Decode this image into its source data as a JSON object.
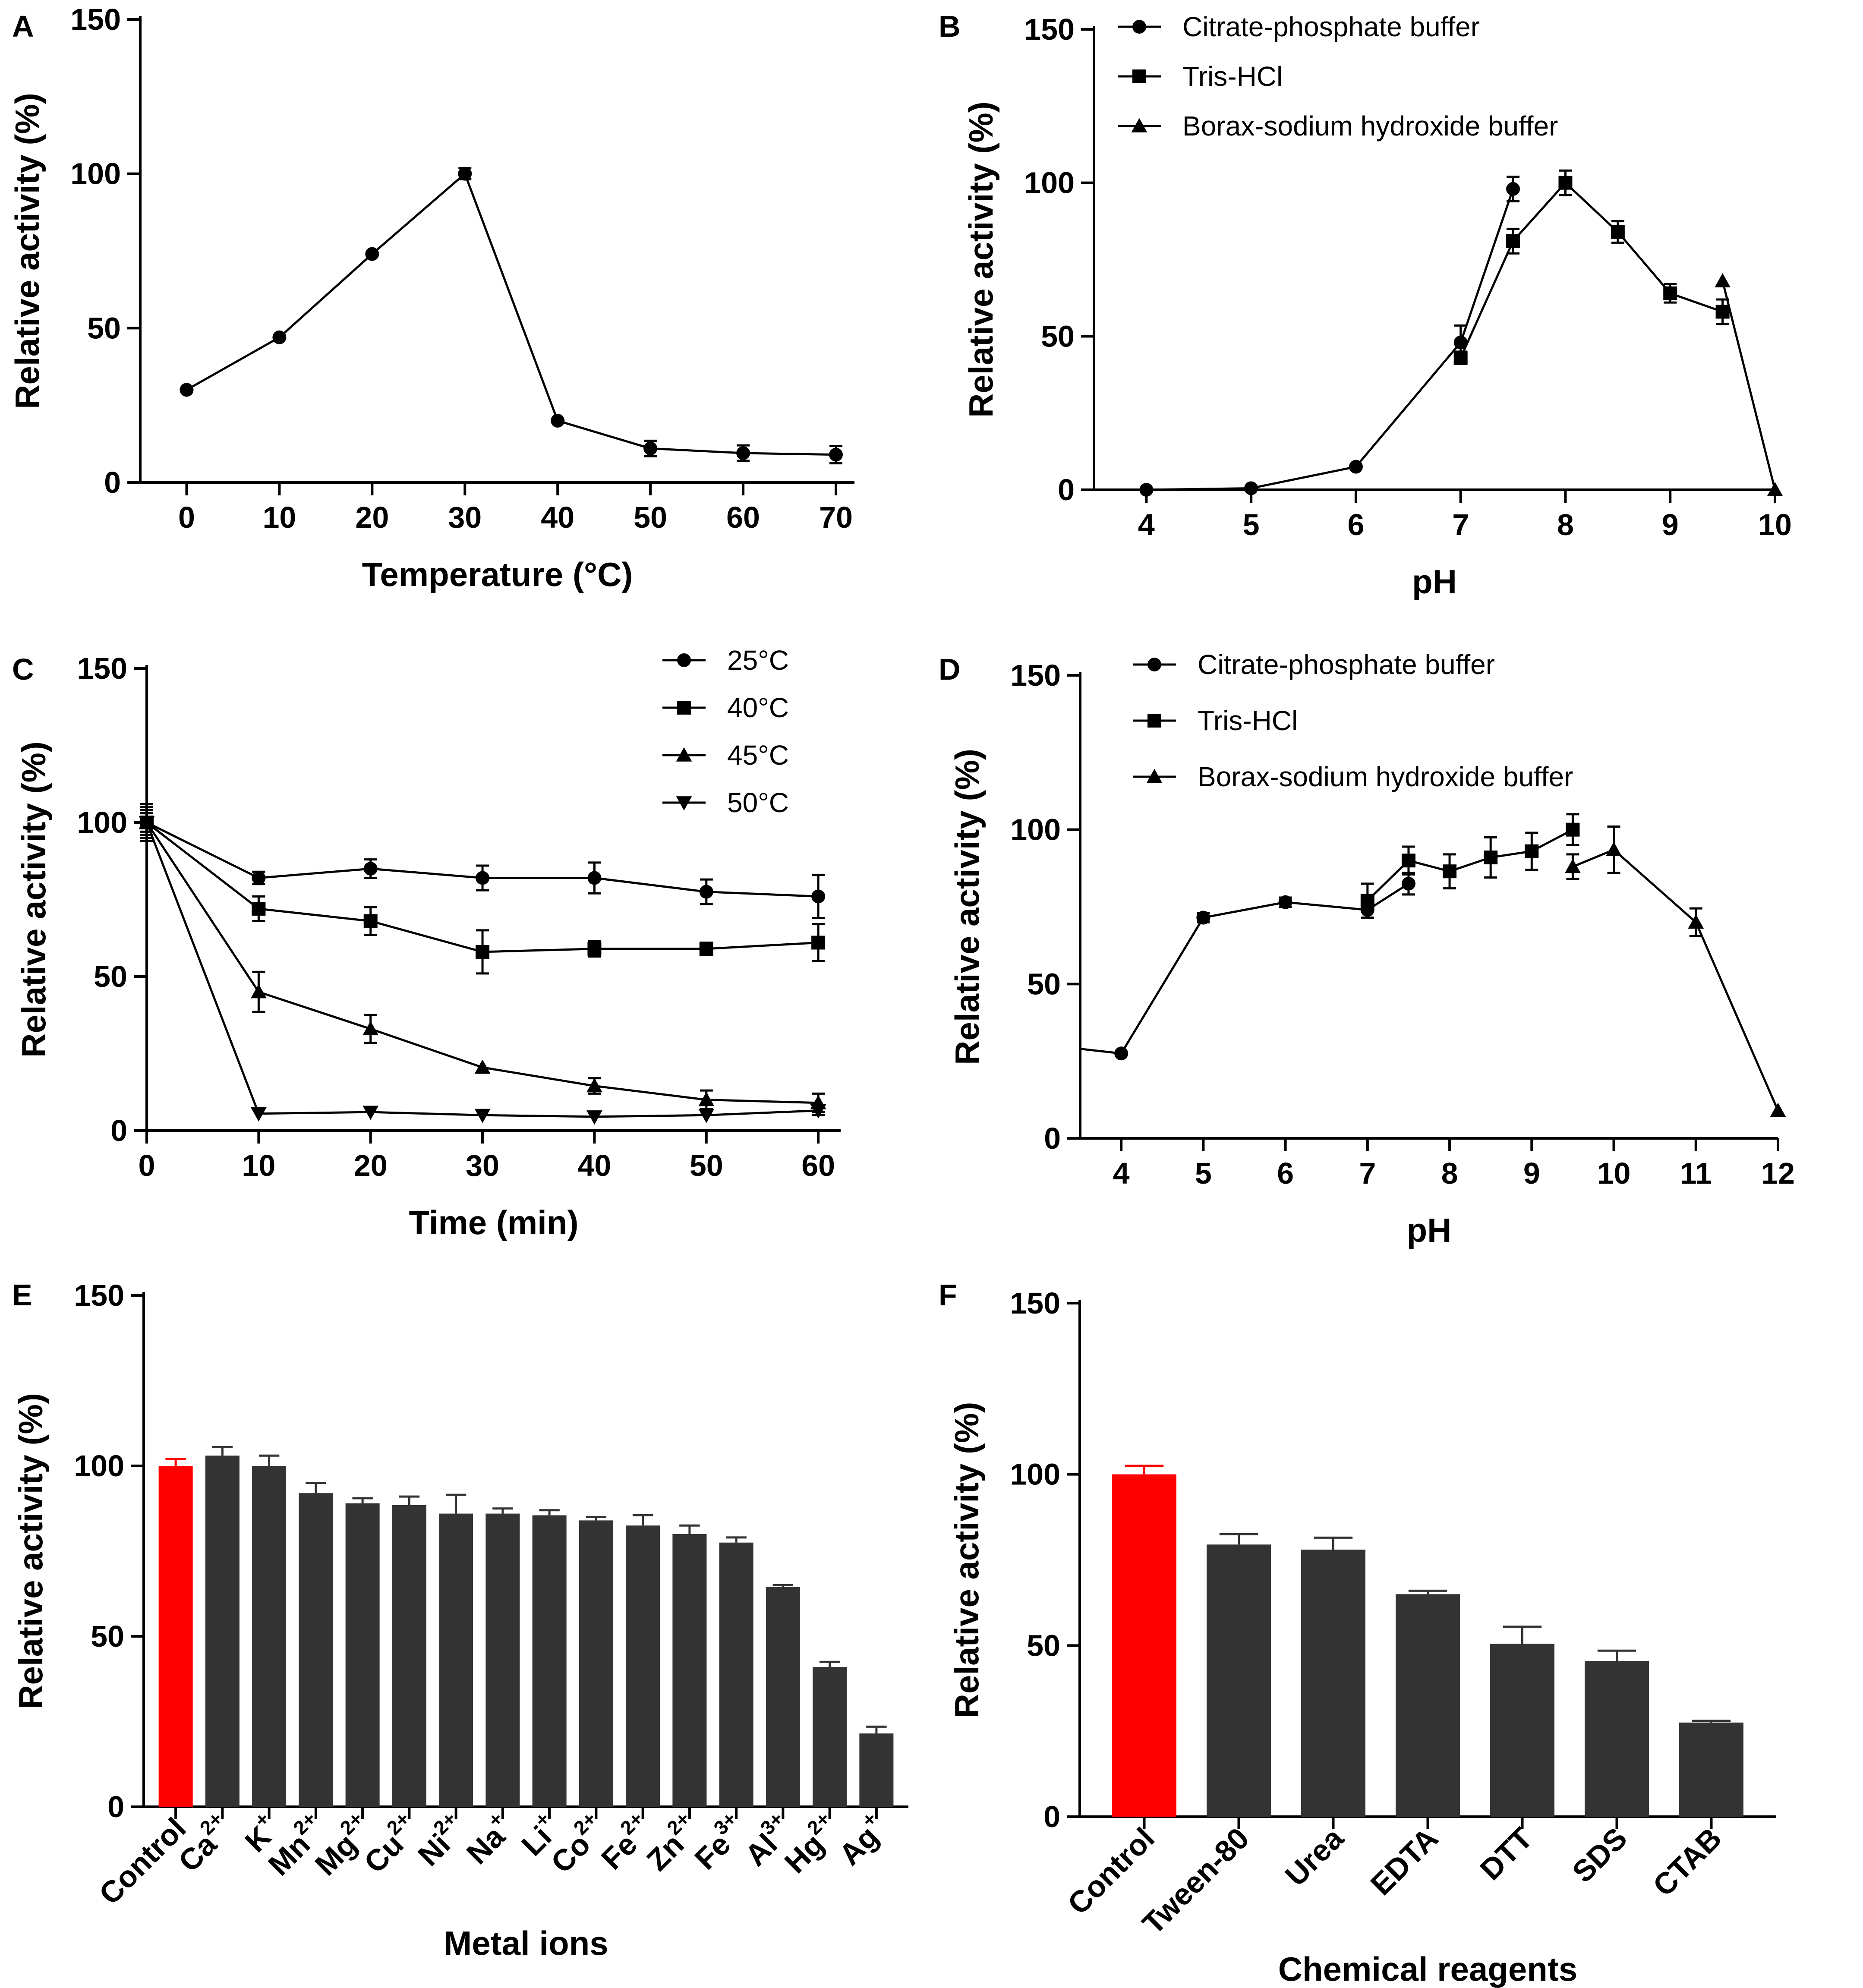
{
  "panels": [
    {
      "letter": "A",
      "type": "line",
      "xlabel": "Temperature (°C)",
      "ylabel": "Relative activity (%)",
      "xlim": [
        -5,
        72
      ],
      "ylim": [
        0,
        150
      ],
      "xticks": [
        0,
        10,
        20,
        30,
        40,
        50,
        60,
        70
      ],
      "yticks": [
        0,
        50,
        100,
        150
      ],
      "series": [
        {
          "name": "",
          "marker": "circle",
          "x": [
            0,
            10,
            20,
            30,
            40,
            50,
            60,
            70
          ],
          "y": [
            30,
            47,
            74,
            100,
            20,
            11,
            9.5,
            9
          ],
          "err": [
            0,
            0,
            0,
            1.8,
            0,
            2.5,
            2.5,
            2.8
          ]
        }
      ]
    },
    {
      "letter": "B",
      "type": "line",
      "xlabel": "pH",
      "ylabel": "Relative activity (%)",
      "xlim": [
        3.5,
        10
      ],
      "ylim": [
        0,
        150
      ],
      "xticks": [
        4,
        5,
        6,
        7,
        8,
        9,
        10
      ],
      "yticks": [
        0,
        50,
        100,
        150
      ],
      "legend": [
        "Citrate-phosphate buffer",
        "Tris-HCl",
        "Borax-sodium hydroxide buffer"
      ],
      "series": [
        {
          "name": "Citrate-phosphate buffer",
          "marker": "circle",
          "x": [
            4,
            5,
            6,
            7,
            7.5
          ],
          "y": [
            0,
            0.5,
            7.5,
            48,
            98
          ],
          "err": [
            0,
            0,
            0,
            5.5,
            4
          ]
        },
        {
          "name": "Tris-HCl",
          "marker": "square",
          "x": [
            7,
            7.5,
            8,
            8.5,
            9,
            9.5
          ],
          "y": [
            43,
            81,
            100,
            84,
            64,
            58
          ],
          "err": [
            2,
            4,
            4,
            3.5,
            3,
            4
          ]
        },
        {
          "name": "Borax-sodium hydroxide buffer",
          "marker": "triangle",
          "x": [
            9.5,
            10
          ],
          "y": [
            68,
            0
          ],
          "err": [
            0,
            0
          ]
        }
      ]
    },
    {
      "letter": "C",
      "type": "line",
      "xlabel": "Time (min)",
      "ylabel": "Relative activity (%)",
      "xlim": [
        0,
        62
      ],
      "ylim": [
        0,
        150
      ],
      "xticks": [
        0,
        10,
        20,
        30,
        40,
        50,
        60
      ],
      "yticks": [
        0,
        50,
        100,
        150
      ],
      "legend": [
        "25°C",
        "40°C",
        "45°C",
        "50°C"
      ],
      "series": [
        {
          "name": "25°C",
          "marker": "circle",
          "x": [
            0,
            10,
            20,
            30,
            40,
            50,
            60
          ],
          "y": [
            100,
            82,
            85,
            82,
            82,
            77.5,
            76
          ],
          "err": [
            6,
            2,
            3,
            4,
            5,
            4,
            7
          ]
        },
        {
          "name": "40°C",
          "marker": "square",
          "x": [
            0,
            10,
            20,
            30,
            40,
            50,
            60
          ],
          "y": [
            100,
            72,
            68,
            58,
            59,
            59,
            61
          ],
          "err": [
            5,
            4,
            4.5,
            7,
            2.5,
            2,
            6
          ]
        },
        {
          "name": "45°C",
          "marker": "triangle",
          "x": [
            0,
            10,
            20,
            30,
            40,
            50,
            60
          ],
          "y": [
            100,
            45,
            33,
            20.5,
            14.5,
            10,
            9
          ],
          "err": [
            4,
            6.5,
            4.5,
            0,
            2.5,
            3,
            3
          ]
        },
        {
          "name": "50°C",
          "marker": "triangle-down",
          "x": [
            0,
            10,
            20,
            30,
            40,
            50,
            60
          ],
          "y": [
            100,
            5.5,
            6,
            5,
            4.5,
            5,
            6.5
          ],
          "err": [
            3,
            0,
            0,
            0,
            0,
            0,
            1.5
          ]
        }
      ]
    },
    {
      "letter": "D",
      "type": "line",
      "xlabel": "pH",
      "ylabel": "Relative activity (%)",
      "xlim": [
        3.5,
        12
      ],
      "ylim": [
        0,
        150
      ],
      "xticks": [
        4,
        5,
        6,
        7,
        8,
        9,
        10,
        11,
        12
      ],
      "yticks": [
        0,
        50,
        100,
        150
      ],
      "legend": [
        "Citrate-phosphate buffer",
        "Tris-HCl",
        "Borax-sodium hydroxide buffer"
      ],
      "series": [
        {
          "name": "Citrate-phosphate buffer",
          "marker": "circle",
          "x": [
            3.5,
            4,
            5,
            6,
            7,
            7.5
          ],
          "y": [
            29,
            27.5,
            71.5,
            76.5,
            74,
            82.5
          ],
          "err": [
            0,
            0,
            1.5,
            1.5,
            2.5,
            3.5
          ],
          "first_hidden": true
        },
        {
          "name": "Tris-HCl",
          "marker": "square",
          "x": [
            7,
            7.5,
            8,
            8.5,
            9,
            9.5
          ],
          "y": [
            77,
            90,
            86.5,
            91,
            93,
            100
          ],
          "err": [
            5.5,
            4.5,
            5.5,
            6.5,
            6,
            5
          ]
        },
        {
          "name": "Borax-sodium hydroxide buffer",
          "marker": "triangle",
          "x": [
            9.5,
            10,
            11,
            12
          ],
          "y": [
            88,
            93.5,
            70,
            9
          ],
          "err": [
            4,
            7.5,
            4.5,
            0
          ]
        }
      ]
    },
    {
      "letter": "E",
      "type": "bar",
      "xlabel": "Metal ions",
      "ylabel": "Relative activity (%)",
      "ylim": [
        0,
        150
      ],
      "yticks": [
        0,
        50,
        100,
        150
      ],
      "categories": [
        {
          "base": "Control",
          "sup": ""
        },
        {
          "base": "Ca",
          "sup": "2+"
        },
        {
          "base": "K",
          "sup": "+"
        },
        {
          "base": "Mn",
          "sup": "2+"
        },
        {
          "base": "Mg",
          "sup": "2+"
        },
        {
          "base": "Cu",
          "sup": "2+"
        },
        {
          "base": "Ni",
          "sup": "2+"
        },
        {
          "base": "Na",
          "sup": "+"
        },
        {
          "base": "Li",
          "sup": "+"
        },
        {
          "base": "Co",
          "sup": "2+"
        },
        {
          "base": "Fe",
          "sup": "2+"
        },
        {
          "base": "Zn",
          "sup": "2+"
        },
        {
          "base": "Fe",
          "sup": "3+"
        },
        {
          "base": "Al",
          "sup": "3+"
        },
        {
          "base": "Hg",
          "sup": "2+"
        },
        {
          "base": "Ag",
          "sup": "+"
        }
      ],
      "values": [
        100,
        103,
        100,
        92,
        89,
        88.5,
        86,
        86,
        85.5,
        84,
        82.5,
        80,
        77.5,
        64.5,
        41,
        21.5
      ],
      "err": [
        2,
        2.5,
        3,
        3,
        1.5,
        2.5,
        5.5,
        1.5,
        1.5,
        1,
        3,
        2.5,
        1.5,
        0.5,
        1.5,
        2
      ],
      "highlight_color": "#ff0000",
      "bar_color": "#333333"
    },
    {
      "letter": "F",
      "type": "bar",
      "xlabel": "Chemical reagents",
      "ylabel": "Relative activity (%)",
      "ylim": [
        0,
        150
      ],
      "yticks": [
        0,
        50,
        100,
        150
      ],
      "categories": [
        {
          "base": "Control",
          "sup": ""
        },
        {
          "base": "Tween-80",
          "sup": ""
        },
        {
          "base": "Urea",
          "sup": ""
        },
        {
          "base": "EDTA",
          "sup": ""
        },
        {
          "base": "DTT",
          "sup": ""
        },
        {
          "base": "SDS",
          "sup": ""
        },
        {
          "base": "CTAB",
          "sup": ""
        }
      ],
      "values": [
        100,
        79.5,
        78,
        65,
        50.5,
        45.5,
        27.5
      ],
      "err": [
        2.5,
        3,
        3.5,
        1,
        5,
        3,
        0.5
      ],
      "highlight_color": "#ff0000",
      "bar_color": "#333333"
    }
  ]
}
